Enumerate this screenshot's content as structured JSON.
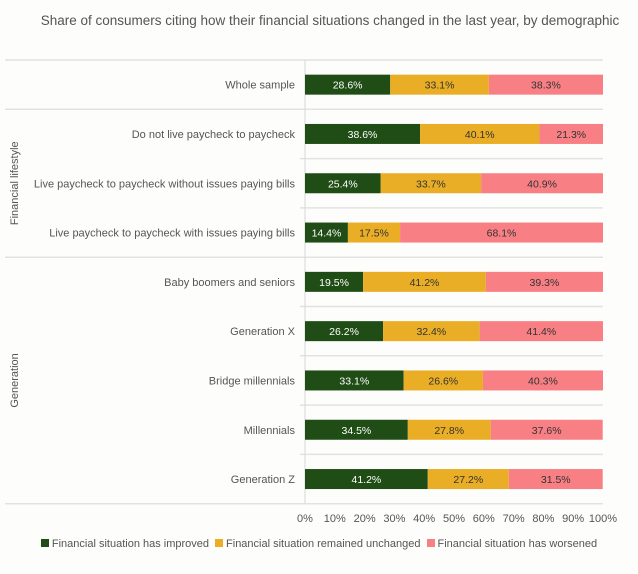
{
  "chart_data": {
    "type": "bar",
    "stacked": true,
    "orientation": "horizontal",
    "title": "Share of consumers citing how their financial situations changed in the last year, by demographic",
    "categories": [
      "Whole sample",
      "Do not live paycheck to paycheck",
      "Live paycheck to paycheck without issues paying bills",
      "Live paycheck to paycheck with issues paying bills",
      "Baby boomers and seniors",
      "Generation X",
      "Bridge millennials",
      "Millennials",
      "Generation Z"
    ],
    "groups": [
      {
        "name": "",
        "rows": [
          0
        ]
      },
      {
        "name": "Financial lifestyle",
        "rows": [
          1,
          2,
          3
        ]
      },
      {
        "name": "Generation",
        "rows": [
          4,
          5,
          6,
          7,
          8
        ]
      }
    ],
    "series": [
      {
        "name": "Financial situation has improved",
        "color": "#1f4d15",
        "values": [
          28.6,
          38.6,
          25.4,
          14.4,
          19.5,
          26.2,
          33.1,
          34.5,
          41.2
        ]
      },
      {
        "name": "Financial situation remained unchanged",
        "color": "#e9ad26",
        "values": [
          33.1,
          40.1,
          33.7,
          17.5,
          41.2,
          32.4,
          26.6,
          27.8,
          27.2
        ]
      },
      {
        "name": "Financial situation has worsened",
        "color": "#f87f84",
        "values": [
          38.3,
          21.3,
          40.9,
          68.1,
          39.3,
          41.4,
          40.3,
          37.6,
          31.5
        ]
      }
    ],
    "xlim": [
      0,
      100
    ],
    "xticks": [
      "0%",
      "10%",
      "20%",
      "30%",
      "40%",
      "50%",
      "60%",
      "70%",
      "80%",
      "90%",
      "100%"
    ],
    "legend": "bottom"
  }
}
